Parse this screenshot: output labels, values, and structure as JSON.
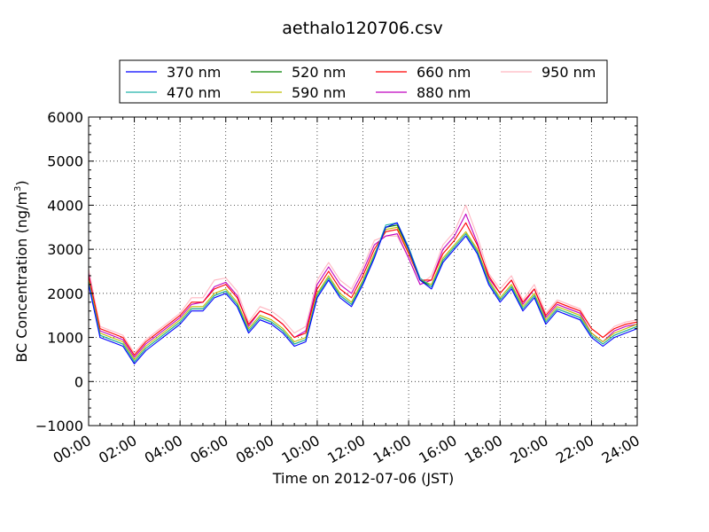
{
  "chart_data": {
    "type": "line",
    "title": "aethalo120706.csv",
    "xlabel": "Time on 2012-07-06 (JST)",
    "ylabel_main": "BC Concentration (ng/m",
    "ylabel_sup": "3",
    "ylabel_close": ")",
    "xlim": [
      0,
      24
    ],
    "ylim": [
      -1000,
      6000
    ],
    "grid": true,
    "legend_placement": "top-center",
    "xticks": [
      {
        "value": 0,
        "label": "00:00"
      },
      {
        "value": 2,
        "label": "02:00"
      },
      {
        "value": 4,
        "label": "04:00"
      },
      {
        "value": 6,
        "label": "06:00"
      },
      {
        "value": 8,
        "label": "08:00"
      },
      {
        "value": 10,
        "label": "10:00"
      },
      {
        "value": 12,
        "label": "12:00"
      },
      {
        "value": 14,
        "label": "14:00"
      },
      {
        "value": 16,
        "label": "16:00"
      },
      {
        "value": 18,
        "label": "18:00"
      },
      {
        "value": 20,
        "label": "20:00"
      },
      {
        "value": 22,
        "label": "22:00"
      },
      {
        "value": 24,
        "label": "24:00"
      }
    ],
    "yticks": [
      {
        "value": -1000,
        "label": "−1000"
      },
      {
        "value": 0,
        "label": "0"
      },
      {
        "value": 1000,
        "label": "1000"
      },
      {
        "value": 2000,
        "label": "2000"
      },
      {
        "value": 3000,
        "label": "3000"
      },
      {
        "value": 4000,
        "label": "4000"
      },
      {
        "value": 5000,
        "label": "5000"
      },
      {
        "value": 6000,
        "label": "6000"
      }
    ],
    "x": [
      0.0,
      0.5,
      1.0,
      1.5,
      2.0,
      2.5,
      3.0,
      3.5,
      4.0,
      4.5,
      5.0,
      5.5,
      6.0,
      6.5,
      7.0,
      7.5,
      8.0,
      8.5,
      9.0,
      9.5,
      10.0,
      10.5,
      11.0,
      11.5,
      12.0,
      12.5,
      13.0,
      13.5,
      14.0,
      14.5,
      15.0,
      15.5,
      16.0,
      16.5,
      17.0,
      17.5,
      18.0,
      18.5,
      19.0,
      19.5,
      20.0,
      20.5,
      21.0,
      21.5,
      22.0,
      22.5,
      23.0,
      23.5,
      24.0
    ],
    "series": [
      {
        "name": "370 nm",
        "color": "#0000ff",
        "values": [
          2200,
          1000,
          900,
          800,
          400,
          700,
          900,
          1100,
          1300,
          1600,
          1600,
          1900,
          2000,
          1700,
          1100,
          1400,
          1300,
          1100,
          800,
          900,
          1900,
          2300,
          1900,
          1700,
          2200,
          2800,
          3500,
          3600,
          3000,
          2300,
          2100,
          2700,
          3000,
          3300,
          2900,
          2200,
          1800,
          2100,
          1600,
          1900,
          1300,
          1600,
          1500,
          1400,
          1000,
          800,
          1000,
          1100,
          1200
        ]
      },
      {
        "name": "470 nm",
        "color": "#20b2aa",
        "values": [
          2250,
          1050,
          950,
          850,
          450,
          750,
          950,
          1150,
          1350,
          1650,
          1650,
          1950,
          2050,
          1750,
          1150,
          1450,
          1350,
          1150,
          850,
          950,
          1950,
          2350,
          1950,
          1750,
          2250,
          2850,
          3550,
          3600,
          3050,
          2350,
          2150,
          2750,
          3050,
          3350,
          2950,
          2250,
          1850,
          2150,
          1650,
          1950,
          1350,
          1650,
          1550,
          1450,
          1050,
          850,
          1050,
          1150,
          1250
        ]
      },
      {
        "name": "520 nm",
        "color": "#008000",
        "values": [
          2250,
          1050,
          950,
          850,
          450,
          750,
          950,
          1150,
          1350,
          1650,
          1650,
          1950,
          2050,
          1750,
          1150,
          1450,
          1350,
          1150,
          850,
          950,
          1950,
          2350,
          1950,
          1750,
          2250,
          2850,
          3500,
          3550,
          3000,
          2300,
          2150,
          2750,
          3050,
          3350,
          2950,
          2250,
          1850,
          2150,
          1650,
          1950,
          1350,
          1650,
          1550,
          1450,
          1050,
          850,
          1050,
          1150,
          1250
        ]
      },
      {
        "name": "590 nm",
        "color": "#bfbf00",
        "values": [
          2300,
          1100,
          1000,
          900,
          500,
          800,
          1000,
          1200,
          1400,
          1700,
          1700,
          2000,
          2100,
          1800,
          1200,
          1500,
          1400,
          1200,
          900,
          1000,
          2000,
          2400,
          2000,
          1800,
          2300,
          2900,
          3450,
          3500,
          2950,
          2300,
          2200,
          2800,
          3100,
          3400,
          3000,
          2300,
          1900,
          2200,
          1700,
          2000,
          1400,
          1700,
          1600,
          1500,
          1100,
          900,
          1100,
          1200,
          1300
        ]
      },
      {
        "name": "660 nm",
        "color": "#ff0000",
        "values": [
          2400,
          1200,
          1100,
          1000,
          600,
          900,
          1100,
          1300,
          1500,
          1800,
          1800,
          2100,
          2200,
          1900,
          1300,
          1600,
          1500,
          1300,
          1000,
          1100,
          2100,
          2500,
          2100,
          1900,
          2400,
          3000,
          3400,
          3450,
          2900,
          2300,
          2300,
          2900,
          3200,
          3600,
          3100,
          2400,
          2000,
          2300,
          1800,
          2100,
          1500,
          1800,
          1700,
          1600,
          1200,
          1000,
          1200,
          1300,
          1350
        ]
      },
      {
        "name": "880 nm",
        "color": "#bf00bf",
        "values": [
          2450,
          1150,
          1050,
          950,
          550,
          850,
          1050,
          1250,
          1450,
          1750,
          1800,
          2150,
          2250,
          1950,
          1250,
          1600,
          1500,
          1300,
          1000,
          1150,
          2200,
          2600,
          2200,
          2000,
          2500,
          3100,
          3300,
          3350,
          2800,
          2200,
          2300,
          3000,
          3300,
          3800,
          3150,
          2350,
          2000,
          2300,
          1750,
          2100,
          1450,
          1750,
          1650,
          1550,
          1100,
          900,
          1150,
          1250,
          1300
        ]
      },
      {
        "name": "950 nm",
        "color": "#ffb6c1",
        "values": [
          2550,
          1250,
          1150,
          1050,
          650,
          950,
          1150,
          1350,
          1550,
          1900,
          1900,
          2300,
          2350,
          2050,
          1350,
          1700,
          1600,
          1400,
          1100,
          1250,
          2300,
          2700,
          2300,
          2100,
          2600,
          3200,
          3300,
          3300,
          2800,
          2200,
          2400,
          3100,
          3400,
          4000,
          3300,
          2450,
          2100,
          2400,
          1850,
          2200,
          1550,
          1850,
          1750,
          1650,
          1200,
          1000,
          1250,
          1350,
          1400
        ]
      }
    ]
  }
}
